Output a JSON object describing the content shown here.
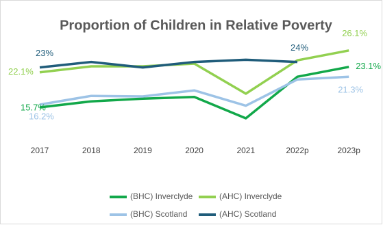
{
  "chart_data": {
    "type": "line",
    "title": "Proportion of Children in Relative Poverty",
    "categories": [
      "2017",
      "2018",
      "2019",
      "2020",
      "2021",
      "2022p",
      "2023p"
    ],
    "ylim": [
      12,
      28
    ],
    "series": [
      {
        "name": "(BHC) Inverclyde",
        "color": "#12a84a",
        "values": [
          15.7,
          16.8,
          17.3,
          17.6,
          13.7,
          21.3,
          23.1
        ],
        "value_labels": [
          "15.7%",
          null,
          null,
          null,
          null,
          null,
          "23.1%"
        ]
      },
      {
        "name": "(AHC) Inverclyde",
        "color": "#92d050",
        "values": [
          22.1,
          23.2,
          23.2,
          23.7,
          18.2,
          24.3,
          26.1
        ],
        "value_labels": [
          "22.1%",
          null,
          null,
          null,
          null,
          null,
          "26.1%"
        ]
      },
      {
        "name": "(BHC) Scotland",
        "color": "#9dc3e6",
        "values": [
          16.2,
          17.8,
          17.7,
          18.8,
          16.0,
          20.8,
          21.3
        ],
        "value_labels": [
          "16.2%",
          null,
          null,
          null,
          null,
          null,
          "21.3%"
        ]
      },
      {
        "name": "(AHC) Scotland",
        "color": "#1f5c7a",
        "values": [
          23,
          24.0,
          23.0,
          24.0,
          24.4,
          24,
          null
        ],
        "value_labels": [
          "23%",
          null,
          null,
          null,
          null,
          "24%",
          null
        ]
      }
    ]
  }
}
